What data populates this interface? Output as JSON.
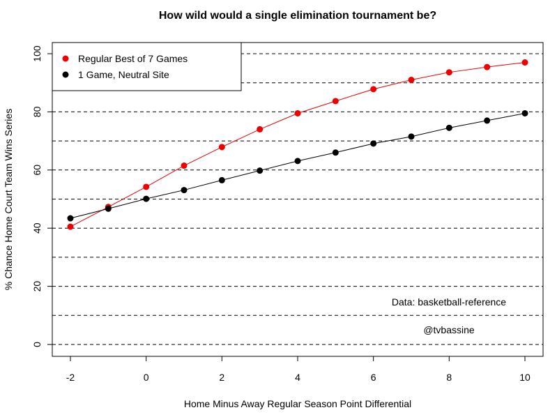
{
  "chart_data": {
    "type": "line",
    "title": "How wild would a single elimination tournament be?",
    "xlabel": "Home Minus Away Regular Season Point Differential",
    "ylabel": "% Chance Home Court Team Wins Series",
    "x": [
      -2,
      -1,
      0,
      1,
      2,
      3,
      4,
      5,
      6,
      7,
      8,
      9,
      10
    ],
    "xlim": [
      -2,
      10
    ],
    "ylim": [
      0,
      100
    ],
    "xticks": [
      -2,
      0,
      2,
      4,
      6,
      8,
      10
    ],
    "yticks": [
      0,
      20,
      40,
      60,
      80,
      100
    ],
    "grid_lines_y": [
      0,
      10,
      20,
      30,
      40,
      50,
      60,
      70,
      80,
      90,
      100
    ],
    "grid": "horizontal dashed",
    "legend_position": "top-left",
    "series": [
      {
        "name": "Regular Best of 7 Games",
        "color": "#ee0000",
        "values": [
          40.5,
          47.3,
          54.2,
          61.5,
          67.9,
          74.0,
          79.5,
          83.7,
          87.8,
          91.0,
          93.6,
          95.4,
          97.0
        ]
      },
      {
        "name": "1 Game, Neutral Site",
        "color": "#000000",
        "values": [
          43.4,
          46.7,
          50.1,
          53.1,
          56.5,
          59.8,
          63.1,
          66.0,
          69.1,
          71.5,
          74.5,
          77.0,
          79.5
        ]
      }
    ],
    "annotations": [
      "Data: basketball-reference",
      "@tvbassine"
    ]
  }
}
